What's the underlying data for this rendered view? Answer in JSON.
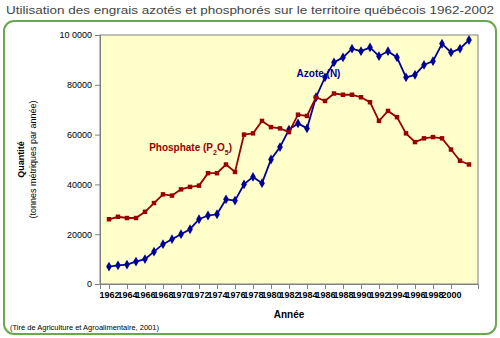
{
  "chart_data": {
    "type": "line",
    "title": "Utilisation des engrais azotés et phosphorés sur le territoire québécois 1962-2002",
    "xlabel": "Année",
    "ylabel": [
      "Quantité",
      "(tonnes métriques par année)"
    ],
    "annotations": [
      "(Tiré de Agriculture et Agroalimentaire, 2001)"
    ],
    "x": [
      1962,
      1963,
      1964,
      1965,
      1966,
      1967,
      1968,
      1969,
      1970,
      1971,
      1972,
      1973,
      1974,
      1975,
      1976,
      1977,
      1978,
      1979,
      1980,
      1981,
      1982,
      1983,
      1984,
      1985,
      1986,
      1987,
      1988,
      1989,
      1990,
      1991,
      1992,
      1993,
      1994,
      1995,
      1996,
      1997,
      1998,
      1999,
      2000,
      2001,
      2002
    ],
    "series": [
      {
        "name": "Azote (N)",
        "color": "#000099",
        "marker": "diamond",
        "values": [
          7000,
          7500,
          7800,
          9000,
          10000,
          13000,
          16000,
          18000,
          20000,
          22000,
          26000,
          27500,
          28000,
          34000,
          33500,
          40000,
          43000,
          40500,
          50000,
          55000,
          62000,
          64500,
          62500,
          75000,
          83000,
          89000,
          91000,
          94500,
          93500,
          95000,
          91500,
          93500,
          91000,
          83000,
          84000,
          88000,
          89500,
          96500,
          93000,
          94500,
          98000
        ]
      },
      {
        "name": "Phosphate (P2O5)",
        "color": "#990000",
        "marker": "square",
        "values": [
          26000,
          27000,
          26500,
          26500,
          29000,
          32500,
          36000,
          35500,
          38000,
          39000,
          39500,
          44500,
          44500,
          48000,
          45000,
          60000,
          60500,
          65500,
          63000,
          62500,
          61000,
          68000,
          67500,
          75000,
          73500,
          76500,
          76000,
          76000,
          75000,
          73000,
          65500,
          69500,
          67000,
          60500,
          57000,
          58500,
          59000,
          58500,
          54000,
          49500,
          48000
        ]
      }
    ],
    "xlim": [
      1961,
      2003
    ],
    "xticks": [
      1962,
      1964,
      1966,
      1968,
      1970,
      1972,
      1974,
      1976,
      1978,
      1980,
      1982,
      1984,
      1986,
      1988,
      1990,
      1992,
      1994,
      1996,
      1998,
      2000
    ],
    "ylim": [
      0,
      100000
    ],
    "yticks": [
      0,
      20000,
      40000,
      60000,
      80000,
      {
        "value": 100000,
        "label": "10 0000"
      }
    ],
    "grid": false
  }
}
